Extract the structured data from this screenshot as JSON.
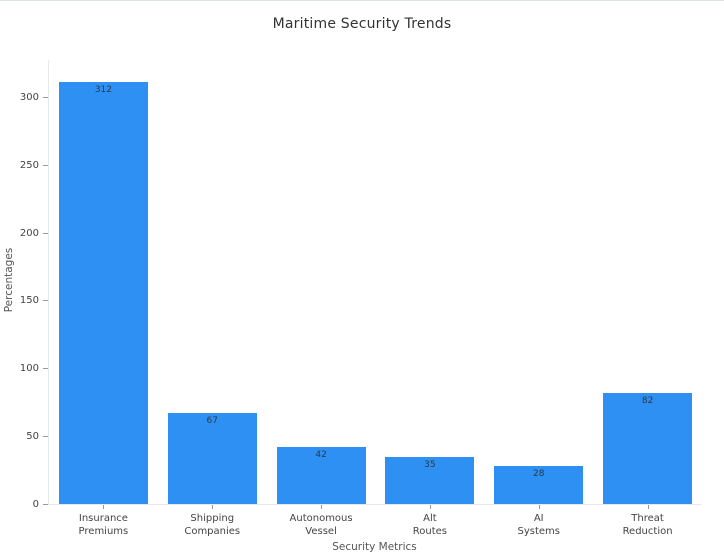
{
  "chart_data": {
    "type": "bar",
    "title": "Maritime Security Trends",
    "xlabel": "Security Metrics",
    "ylabel": "Percentages",
    "categories": [
      "Insurance\nPremiums",
      "Shipping\nCompanies",
      "Autonomous\nVessel",
      "Alt\nRoutes",
      "AI\nSystems",
      "Threat\nReduction"
    ],
    "values": [
      312,
      67,
      42,
      35,
      28,
      82
    ],
    "yticks": [
      0,
      50,
      100,
      150,
      200,
      250,
      300
    ],
    "ylim": [
      0,
      328
    ],
    "bar_color": "#2E90F2",
    "grid": false,
    "legend_position": "none"
  }
}
